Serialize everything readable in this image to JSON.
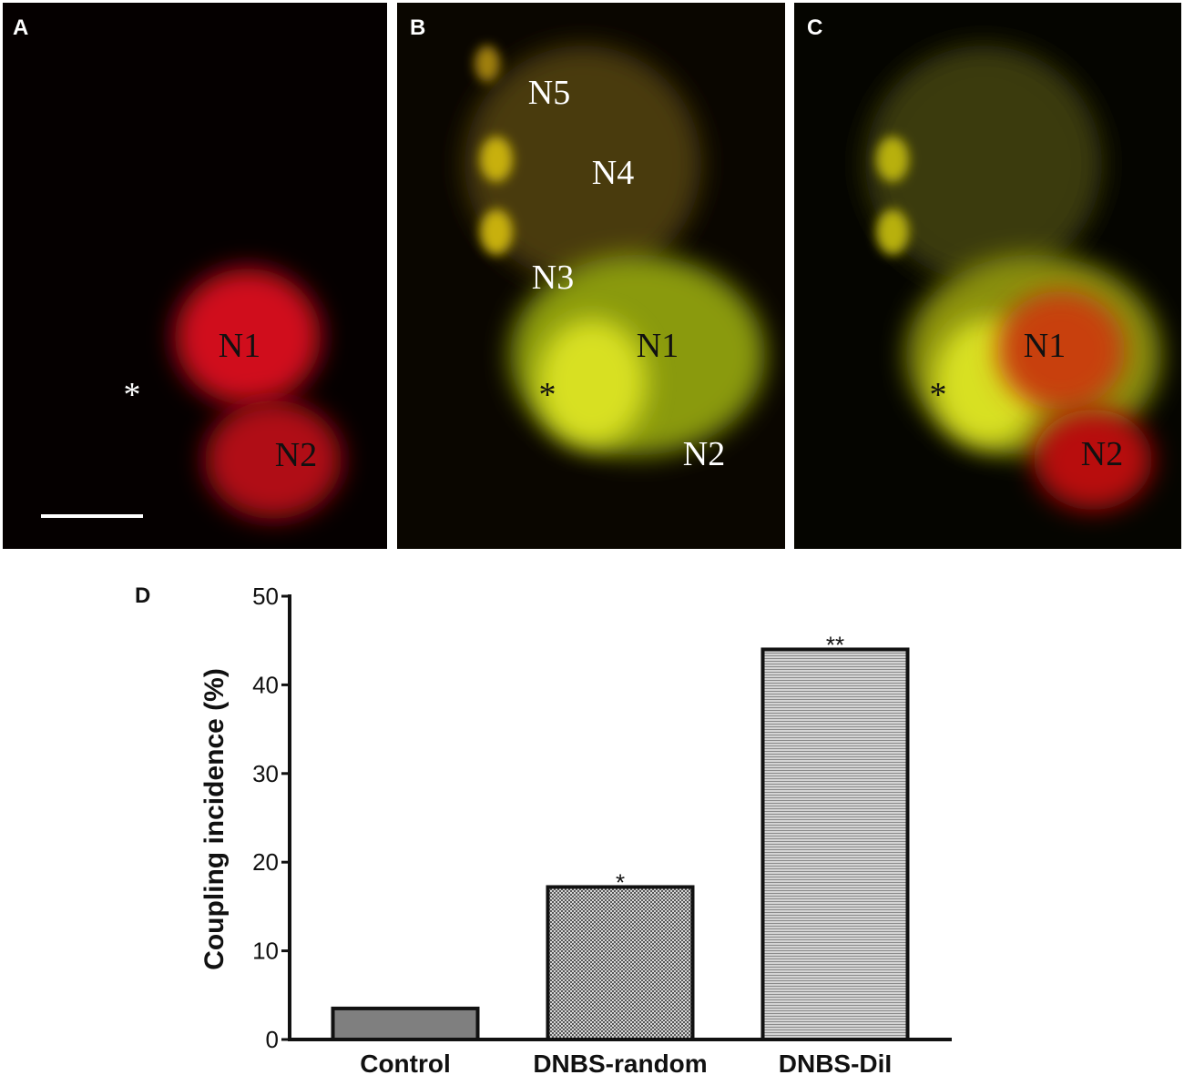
{
  "panels": [
    {
      "label": "A",
      "annotations": [
        "N1",
        "N2",
        "*"
      ]
    },
    {
      "label": "B",
      "annotations": [
        "N5",
        "N4",
        "N3",
        "N1",
        "*",
        "N2"
      ]
    },
    {
      "label": "C",
      "annotations": [
        "N1",
        "*",
        "N2"
      ]
    }
  ],
  "chart_data": {
    "type": "bar",
    "panel_label": "D",
    "y_label": "Coupling incidence (%)",
    "categories": [
      "Control",
      "DNBS-random",
      "DNBS-DiI"
    ],
    "values": [
      3.5,
      17.2,
      44
    ],
    "colors": [
      "#7f7f7f",
      "#9a9a9a",
      "#c4c4c4"
    ],
    "patterns": [
      "solid",
      "checker",
      "hlines"
    ],
    "annotations": [
      {
        "category": "DNBS-random",
        "text": "*"
      },
      {
        "category": "DNBS-DiI",
        "text": "**"
      }
    ],
    "ylim": [
      0,
      50
    ],
    "yticks": [
      0,
      10,
      20,
      30,
      40,
      50
    ],
    "grid": false
  }
}
